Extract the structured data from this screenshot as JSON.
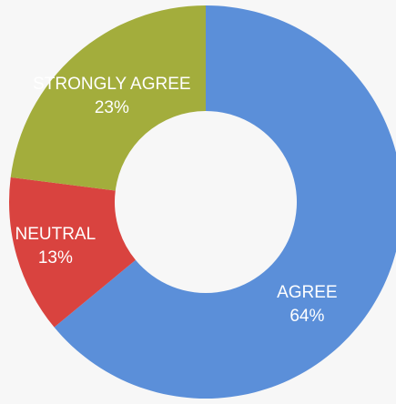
{
  "chart_data": {
    "type": "pie",
    "variant": "donut",
    "categories": [
      "AGREE",
      "NEUTRAL",
      "STRONGLY AGREE"
    ],
    "values": [
      64,
      13,
      23
    ],
    "value_labels": [
      "64%",
      "13%",
      "23%"
    ],
    "colors": [
      "#5b8fd9",
      "#d9433f",
      "#a3ad3c"
    ],
    "label_colors": [
      "#ffffff",
      "#ffffff",
      "#ffffff"
    ],
    "title": "",
    "legend": "none"
  }
}
